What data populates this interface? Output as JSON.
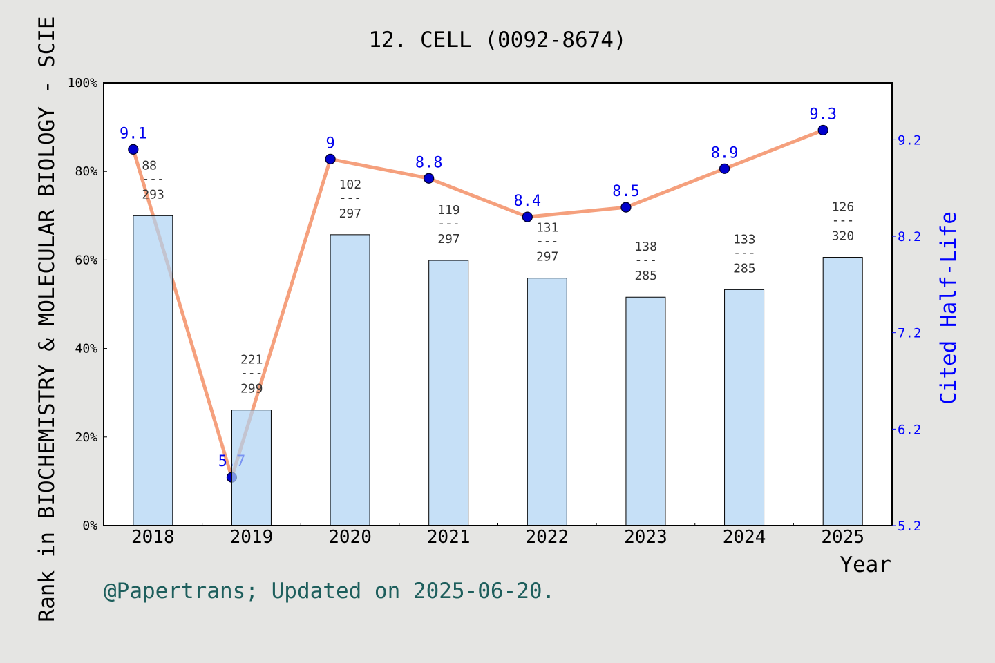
{
  "chart_data": {
    "type": "bar",
    "title": "12. CELL (0092-8674)",
    "xlabel": "Year",
    "ylabel": "Rank in BIOCHEMISTRY & MOLECULAR BIOLOGY - SCIE",
    "y2label": "Cited Half-Life",
    "categories": [
      "2018",
      "2019",
      "2020",
      "2021",
      "2022",
      "2023",
      "2024",
      "2025"
    ],
    "series": [
      {
        "type": "bar",
        "axis": "left",
        "values": [
          70.0,
          26.1,
          65.7,
          59.9,
          55.9,
          51.6,
          53.3,
          60.6
        ],
        "rank": [
          88,
          221,
          102,
          119,
          131,
          138,
          133,
          126
        ],
        "total": [
          293,
          299,
          297,
          297,
          297,
          285,
          285,
          320
        ]
      },
      {
        "type": "line",
        "axis": "right",
        "values": [
          9.1,
          5.7,
          9,
          8.8,
          8.4,
          8.5,
          8.9,
          9.3
        ]
      }
    ],
    "rank_separator": "---",
    "ylim": [
      0,
      100
    ],
    "yticks": [
      0,
      20,
      40,
      60,
      80,
      100
    ],
    "ytick_labels": [
      "0%",
      "20%",
      "40%",
      "60%",
      "80%",
      "100%"
    ],
    "y2lim": [
      5.2,
      9.79
    ],
    "y2ticks": [
      5.2,
      6.2,
      7.2,
      8.2,
      9.2
    ],
    "grid": false,
    "legend": "none"
  },
  "footnote": "@Papertrans; Updated on 2025-06-20.",
  "colors": {
    "background": "#e5e5e3",
    "plot_background": "#ffffff",
    "bar": "#aed3f4",
    "line": "#f5a07d",
    "marker": "#0000cc",
    "value_label": "#0000ee",
    "right_axis": "#0000ff",
    "rank_label": "#333333",
    "text": "#000000",
    "footnote": "#1d5e5c"
  }
}
